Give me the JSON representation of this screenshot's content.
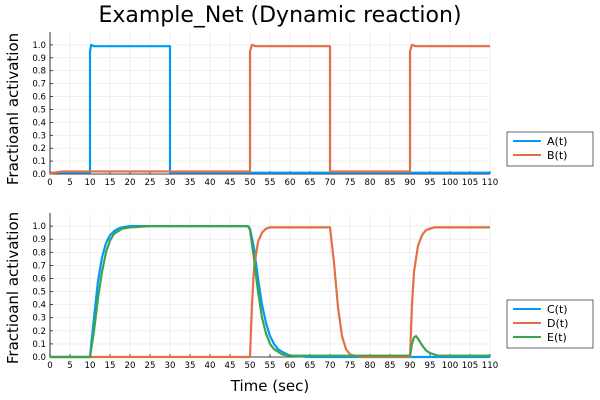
{
  "chart_data": [
    {
      "type": "line",
      "title": "Example_Net (Dynamic reaction)",
      "xlabel": "",
      "ylabel": "Fractioanl activation",
      "xlim": [
        0,
        110
      ],
      "ylim": [
        0,
        1.1
      ],
      "x_ticks": [
        "0",
        "5",
        "10",
        "15",
        "20",
        "25",
        "30",
        "35",
        "40",
        "45",
        "50",
        "55",
        "60",
        "65",
        "70",
        "75",
        "80",
        "85",
        "90",
        "95",
        "100",
        "105",
        "110"
      ],
      "y_ticks": [
        "0.0",
        "0.1",
        "0.2",
        "0.3",
        "0.4",
        "0.5",
        "0.6",
        "0.7",
        "0.8",
        "0.9",
        "1.0"
      ],
      "grid": true,
      "legend_position": "right",
      "series": [
        {
          "name": "A(t)",
          "color": "#009af9",
          "x": [
            0,
            10,
            10,
            10.3,
            11,
            30,
            30,
            110
          ],
          "y": [
            0.01,
            0.01,
            0.95,
            1.0,
            0.99,
            0.99,
            0.01,
            0.01
          ]
        },
        {
          "name": "B(t)",
          "color": "#e26f46",
          "x": [
            0,
            1,
            3,
            5,
            50,
            50,
            50.5,
            51.5,
            70,
            70,
            90,
            90,
            90.5,
            91.5,
            110
          ],
          "y": [
            0,
            0.01,
            0.02,
            0.02,
            0.02,
            0.95,
            1.0,
            0.99,
            0.99,
            0.02,
            0.02,
            0.95,
            1.0,
            0.99,
            0.99
          ]
        }
      ]
    },
    {
      "type": "line",
      "title": "",
      "xlabel": "Time (sec)",
      "ylabel": "Fractioanl activation",
      "xlim": [
        0,
        110
      ],
      "ylim": [
        0,
        1.1
      ],
      "x_ticks": [
        "0",
        "5",
        "10",
        "15",
        "20",
        "25",
        "30",
        "35",
        "40",
        "45",
        "50",
        "55",
        "60",
        "65",
        "70",
        "75",
        "80",
        "85",
        "90",
        "95",
        "100",
        "105",
        "110"
      ],
      "y_ticks": [
        "0.0",
        "0.1",
        "0.2",
        "0.3",
        "0.4",
        "0.5",
        "0.6",
        "0.7",
        "0.8",
        "0.9",
        "1.0"
      ],
      "grid": true,
      "legend_position": "right",
      "series": [
        {
          "name": "C(t)",
          "color": "#009af9",
          "x": [
            0,
            10,
            11,
            12,
            13,
            14,
            15,
            16,
            17,
            18,
            20,
            25,
            30,
            40,
            49.5,
            50,
            51,
            52,
            53,
            54,
            55,
            56,
            57,
            58,
            60,
            65,
            70,
            80,
            90,
            110
          ],
          "y": [
            0,
            0,
            0.3,
            0.58,
            0.76,
            0.87,
            0.93,
            0.96,
            0.98,
            0.99,
            1.0,
            1.0,
            1.0,
            1.0,
            1.0,
            0.98,
            0.83,
            0.6,
            0.4,
            0.26,
            0.16,
            0.1,
            0.06,
            0.04,
            0.01,
            0,
            0,
            0,
            0,
            0
          ]
        },
        {
          "name": "D(t)",
          "color": "#e26f46",
          "x": [
            0,
            10,
            50,
            50.5,
            51,
            52,
            53,
            54,
            55,
            56,
            58,
            60,
            70,
            71,
            72,
            73,
            74,
            75,
            76,
            78,
            90,
            90.5,
            91,
            92,
            93,
            94,
            95,
            96,
            98,
            100,
            110
          ],
          "y": [
            0,
            0,
            0,
            0.4,
            0.68,
            0.88,
            0.95,
            0.98,
            0.99,
            0.99,
            0.99,
            0.99,
            0.99,
            0.72,
            0.38,
            0.16,
            0.06,
            0.02,
            0.01,
            0,
            0,
            0.4,
            0.65,
            0.85,
            0.93,
            0.97,
            0.98,
            0.99,
            0.99,
            0.99,
            0.99
          ]
        },
        {
          "name": "E(t)",
          "color": "#3da44d",
          "x": [
            0,
            10,
            11,
            12,
            13,
            14,
            15,
            16,
            18,
            20,
            25,
            30,
            40,
            49.5,
            50,
            51,
            52,
            53,
            54,
            55,
            56,
            58,
            60,
            70,
            90,
            90.5,
            91,
            91.5,
            92,
            93,
            94,
            95,
            96,
            97,
            110
          ],
          "y": [
            0,
            0,
            0.2,
            0.45,
            0.65,
            0.8,
            0.89,
            0.94,
            0.98,
            0.99,
            1.0,
            1.0,
            1.0,
            1.0,
            0.97,
            0.75,
            0.5,
            0.3,
            0.18,
            0.1,
            0.06,
            0.02,
            0.01,
            0.01,
            0.01,
            0.1,
            0.15,
            0.16,
            0.14,
            0.09,
            0.05,
            0.03,
            0.02,
            0.01,
            0.01
          ]
        }
      ]
    }
  ]
}
